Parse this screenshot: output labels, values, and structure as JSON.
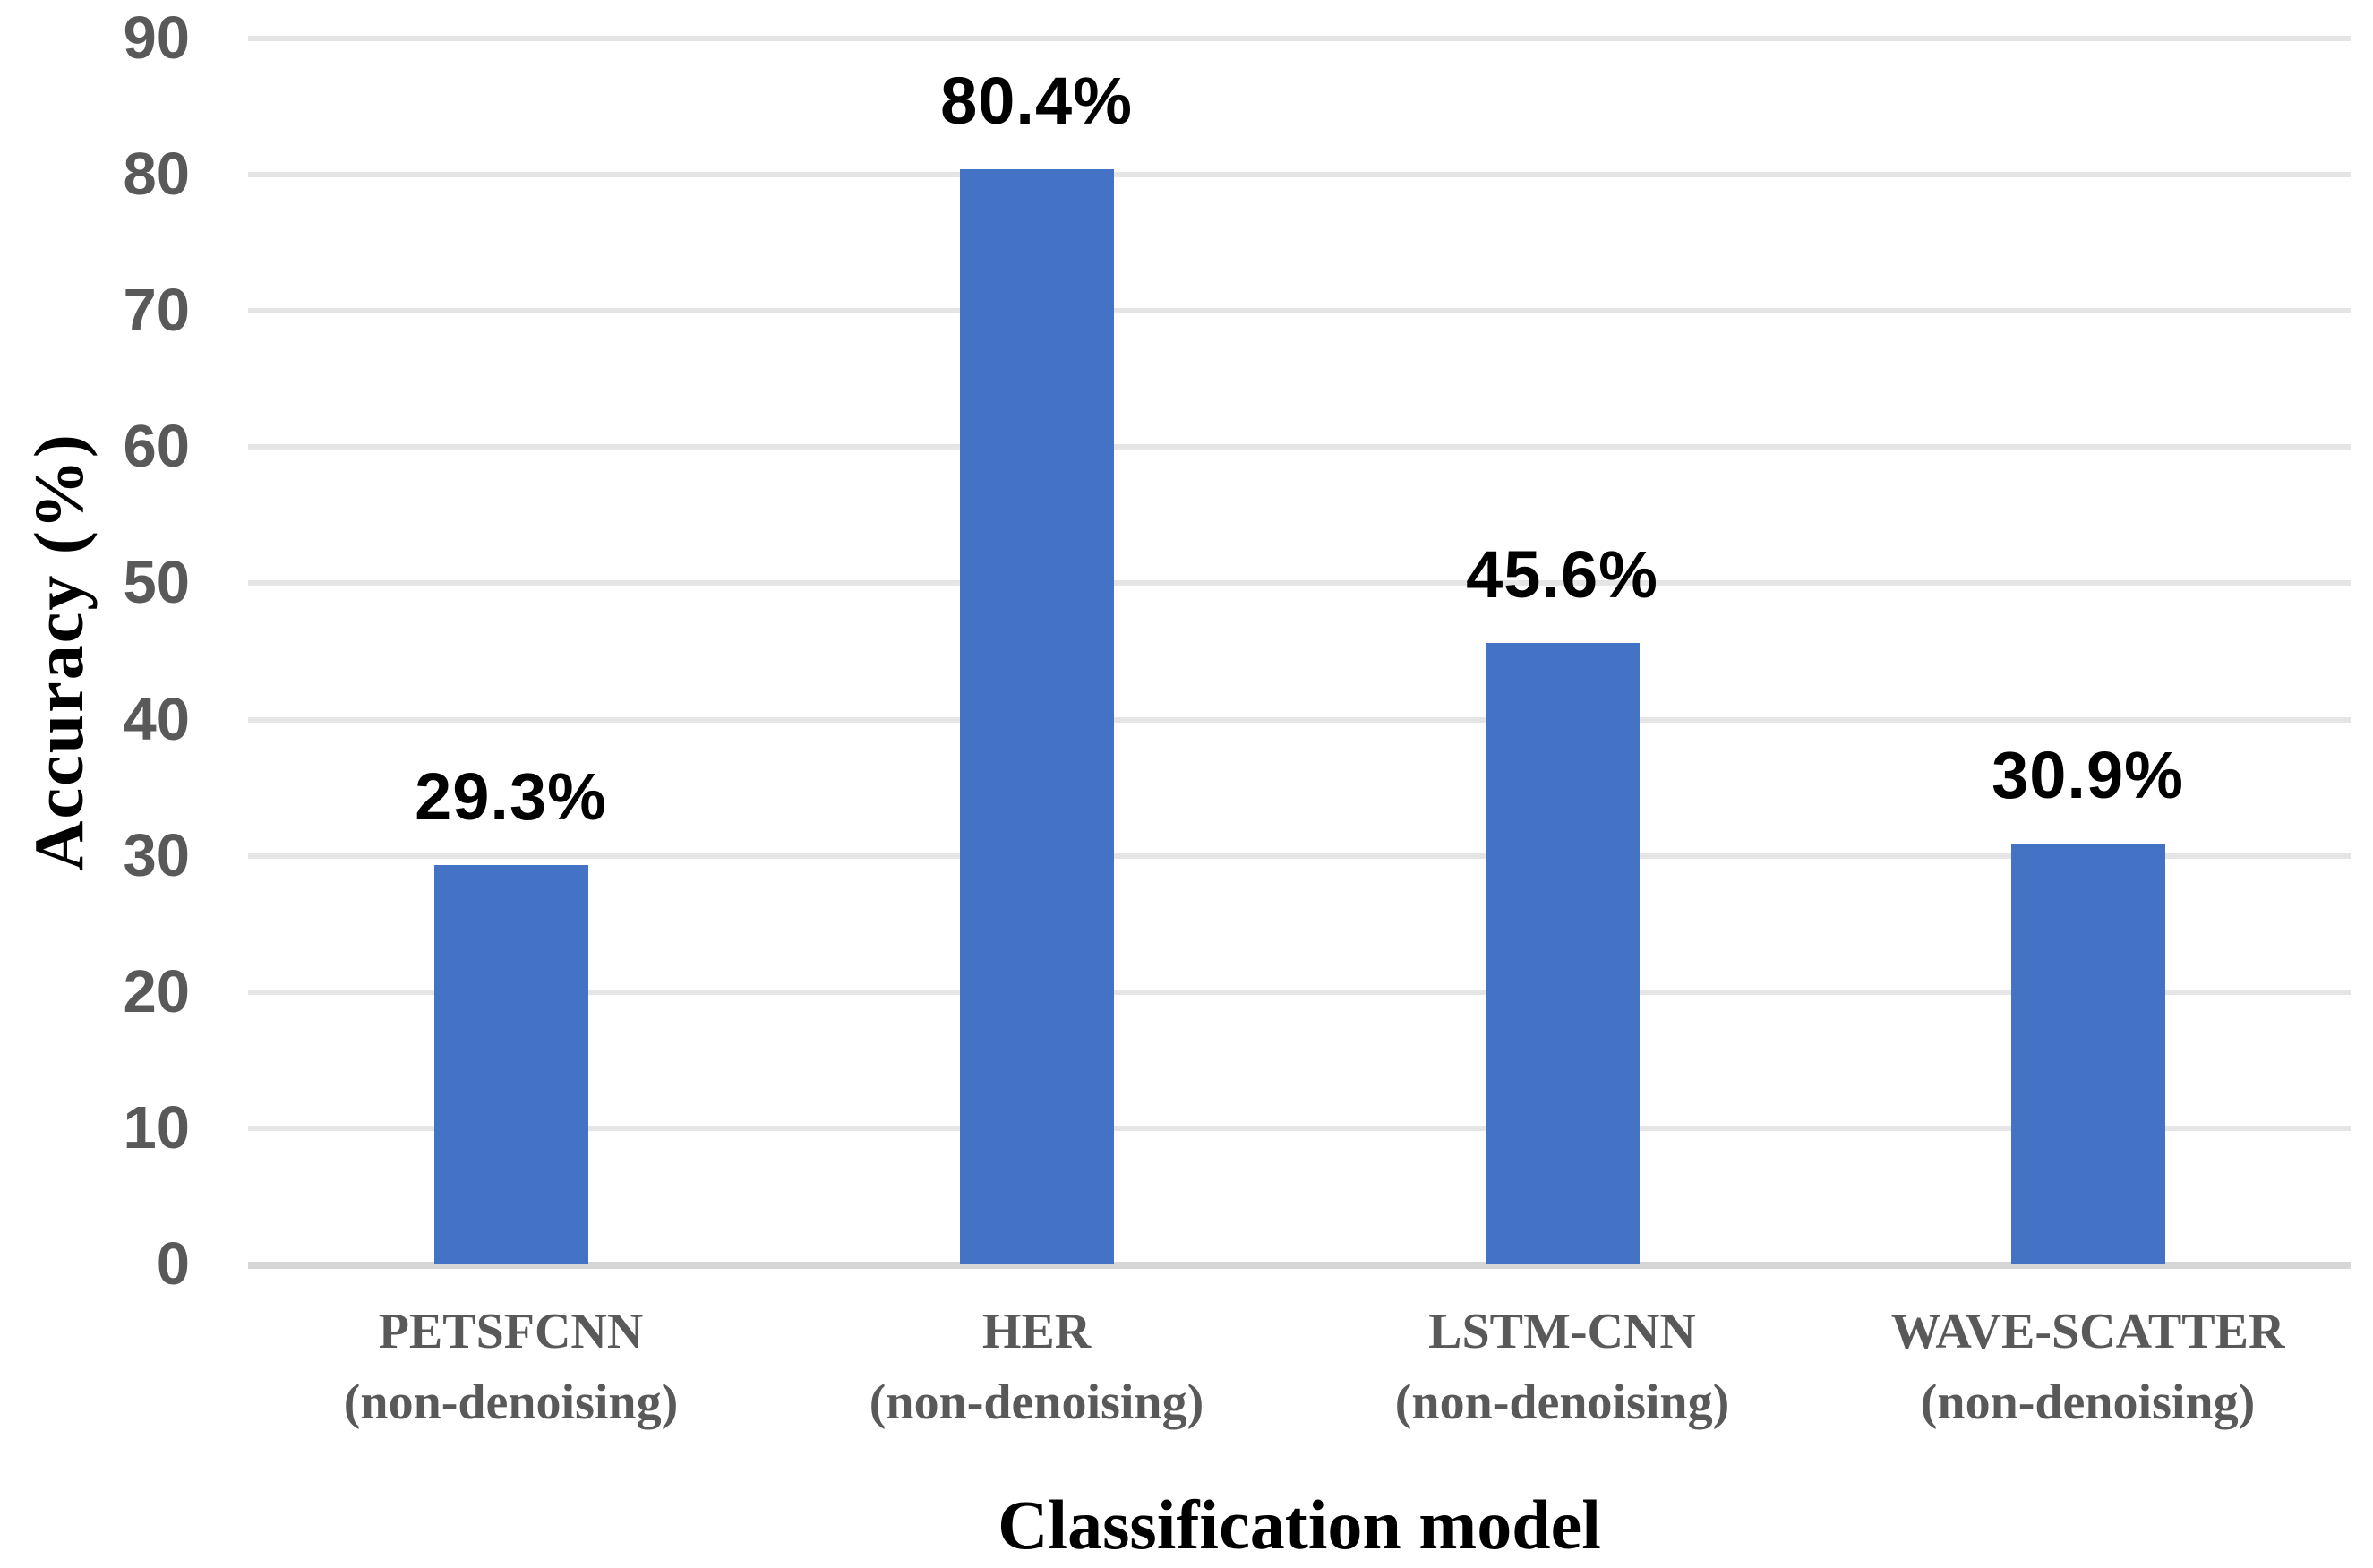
{
  "chart_data": {
    "type": "bar",
    "title": "",
    "xlabel": "Classification model",
    "ylabel": "Accuracy (%)",
    "ylim": [
      0,
      90
    ],
    "yticks": [
      0,
      10,
      20,
      30,
      40,
      50,
      60,
      70,
      80,
      90
    ],
    "grid": true,
    "legend": false,
    "categories": [
      "PETSFCNN",
      "HER",
      "LSTM-CNN",
      "WAVE-SCATTER"
    ],
    "category_subtitles": [
      "(non-denoising)",
      "(non-denoising)",
      "(non-denoising)",
      "(non-denoising)"
    ],
    "values": [
      29.3,
      80.4,
      45.6,
      30.9
    ],
    "value_labels": [
      "29.3%",
      "80.4%",
      "45.6%",
      "30.9%"
    ],
    "colors": {
      "bar": "#4472C4",
      "gridline": "#E5E5E5",
      "baseline": "#D6D6D6",
      "axis_text": "#595959",
      "value_label": "#000000",
      "background": "#FFFFFF"
    }
  }
}
